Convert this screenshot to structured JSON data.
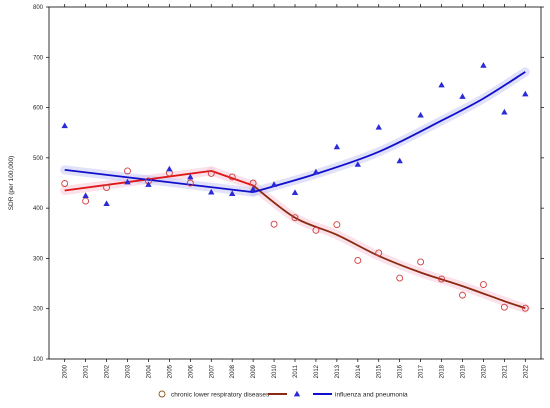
{
  "chart_data": {
    "type": "scatter",
    "ylabel": "SDR (per 100,000)",
    "xlabel": "",
    "ylim": [
      100,
      800
    ],
    "yticks": [
      100,
      200,
      300,
      400,
      500,
      600,
      700,
      800
    ],
    "x": [
      2000,
      2001,
      2002,
      2003,
      2004,
      2005,
      2006,
      2007,
      2008,
      2009,
      2010,
      2011,
      2012,
      2013,
      2014,
      2015,
      2016,
      2017,
      2018,
      2019,
      2020,
      2021,
      2022
    ],
    "grid": false,
    "series": [
      {
        "name": "chronic lower respiratory diseases",
        "marker": "circle",
        "marker_color": "#d23c3c",
        "values": [
          449,
          414,
          441,
          474,
          454,
          470,
          450,
          469,
          462,
          450,
          368,
          381,
          356,
          367,
          296,
          311,
          261,
          293,
          259,
          227,
          248,
          203,
          201
        ],
        "trend": [
          {
            "x": [
              2000,
              2007
            ],
            "y": [
              435,
              474
            ],
            "color": "#e01515"
          },
          {
            "x": [
              2007,
              2009
            ],
            "y": [
              474,
              445
            ],
            "color": "#e01515"
          },
          {
            "x": [
              2009,
              2011,
              2013,
              2015,
              2017,
              2019,
              2021,
              2022
            ],
            "y": [
              445,
              381,
              347,
              305,
              272,
              245,
              215,
              201
            ],
            "color": "#8b2a10"
          }
        ]
      },
      {
        "name": "influenza and pneumonia",
        "marker": "triangle",
        "marker_color": "#2a2ad6",
        "values": [
          564,
          425,
          409,
          452,
          447,
          478,
          462,
          432,
          429,
          438,
          447,
          431,
          472,
          522,
          487,
          561,
          494,
          585,
          645,
          622,
          684,
          591,
          627
        ],
        "trend": [
          {
            "x": [
              2000,
              2009
            ],
            "y": [
              476,
              432
            ],
            "color": "#1010cc"
          },
          {
            "x": [
              2009,
              2012,
              2015,
              2018,
              2020,
              2022
            ],
            "y": [
              432,
              468,
              512,
              574,
              618,
              671
            ],
            "color": "#1010cc"
          }
        ]
      }
    ],
    "legend": {
      "position": "bottom",
      "entries": [
        "chronic lower respiratory diseases",
        "",
        "influenza and pneumonia"
      ]
    }
  }
}
